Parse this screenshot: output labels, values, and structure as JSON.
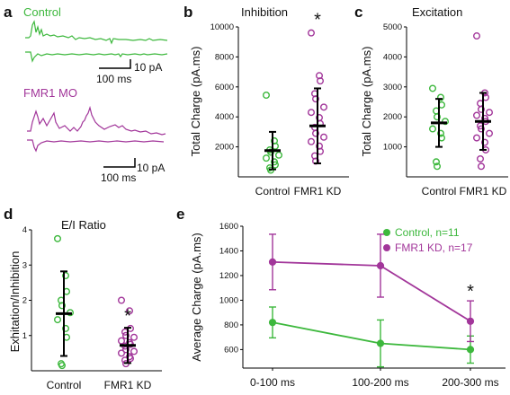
{
  "colors": {
    "control": "#3db83d",
    "fmr1": "#a2369a",
    "mean": "#000000"
  },
  "panel_a": {
    "letter": "a",
    "control_label": "Control",
    "fmr1_label": "FMR1 MO",
    "scalebar_y": "10 pA",
    "scalebar_x": "100 ms"
  },
  "chart_data": [
    {
      "id": "b",
      "type": "scatter",
      "title": "Inhibition",
      "ylabel": "Total Charge (pA.ms)",
      "ylim": [
        0,
        10000
      ],
      "yticks": [
        2000,
        4000,
        6000,
        8000,
        10000
      ],
      "categories": [
        "Control",
        "FMR1 KD"
      ],
      "points": [
        [
          5450,
          2400,
          2050,
          1800,
          1650,
          1450,
          1250,
          1000,
          800,
          600,
          450
        ],
        [
          9600,
          6750,
          6400,
          5550,
          5200,
          4650,
          4300,
          3950,
          3550,
          3300,
          2900,
          2650,
          2350,
          2050,
          1700,
          1400,
          1050
        ]
      ],
      "means": [
        1750,
        3400
      ],
      "sd": [
        1250,
        2500
      ],
      "sig": "*",
      "sig_index": 1
    },
    {
      "id": "c",
      "type": "scatter",
      "title": "Excitation",
      "ylabel": "Total Charge (pA.ms)",
      "ylim": [
        0,
        5000
      ],
      "yticks": [
        1000,
        2000,
        3000,
        4000,
        5000
      ],
      "categories": [
        "Control",
        "FMR1 KD"
      ],
      "points": [
        [
          2950,
          2650,
          2400,
          2200,
          2000,
          1850,
          1600,
          1450,
          1300,
          500,
          350
        ],
        [
          4700,
          2800,
          2650,
          2450,
          2250,
          2150,
          2050,
          1950,
          1850,
          1700,
          1600,
          1450,
          1300,
          1150,
          900,
          600,
          350
        ]
      ],
      "means": [
        1800,
        1850
      ],
      "sd": [
        800,
        950
      ]
    },
    {
      "id": "d",
      "type": "scatter",
      "title": "E/I Ratio",
      "ylabel": "Exhitation/Inhibition",
      "ylim": [
        0,
        4
      ],
      "yticks": [
        1,
        2,
        3,
        4
      ],
      "categories": [
        "Control",
        "FMR1 KD"
      ],
      "points": [
        [
          3.75,
          2.7,
          2.25,
          2.0,
          1.85,
          1.65,
          1.45,
          1.2,
          0.95,
          0.2,
          0.15
        ],
        [
          2.0,
          1.7,
          1.2,
          1.1,
          1.0,
          0.95,
          0.85,
          0.8,
          0.75,
          0.7,
          0.6,
          0.55,
          0.5,
          0.4,
          0.35,
          0.3,
          0.2
        ]
      ],
      "means": [
        1.62,
        0.72
      ],
      "sd": [
        1.2,
        0.5
      ],
      "sig": "*",
      "sig_index": 1
    },
    {
      "id": "e",
      "type": "line",
      "ylabel": "Average Charge (pA.ms)",
      "ylim": [
        450,
        1600
      ],
      "yticks": [
        600,
        800,
        1000,
        1200,
        1400,
        1600
      ],
      "categories": [
        "0-100 ms",
        "100-200 ms",
        "200-300 ms"
      ],
      "series": [
        {
          "name": "Control, n=11",
          "values": [
            820,
            650,
            600
          ],
          "err": [
            125,
            190,
            110
          ]
        },
        {
          "name": "FMR1 KD, n=17",
          "values": [
            1310,
            1280,
            830
          ],
          "err": [
            225,
            255,
            165
          ]
        }
      ],
      "sig": "*",
      "sig_index": 2
    }
  ]
}
